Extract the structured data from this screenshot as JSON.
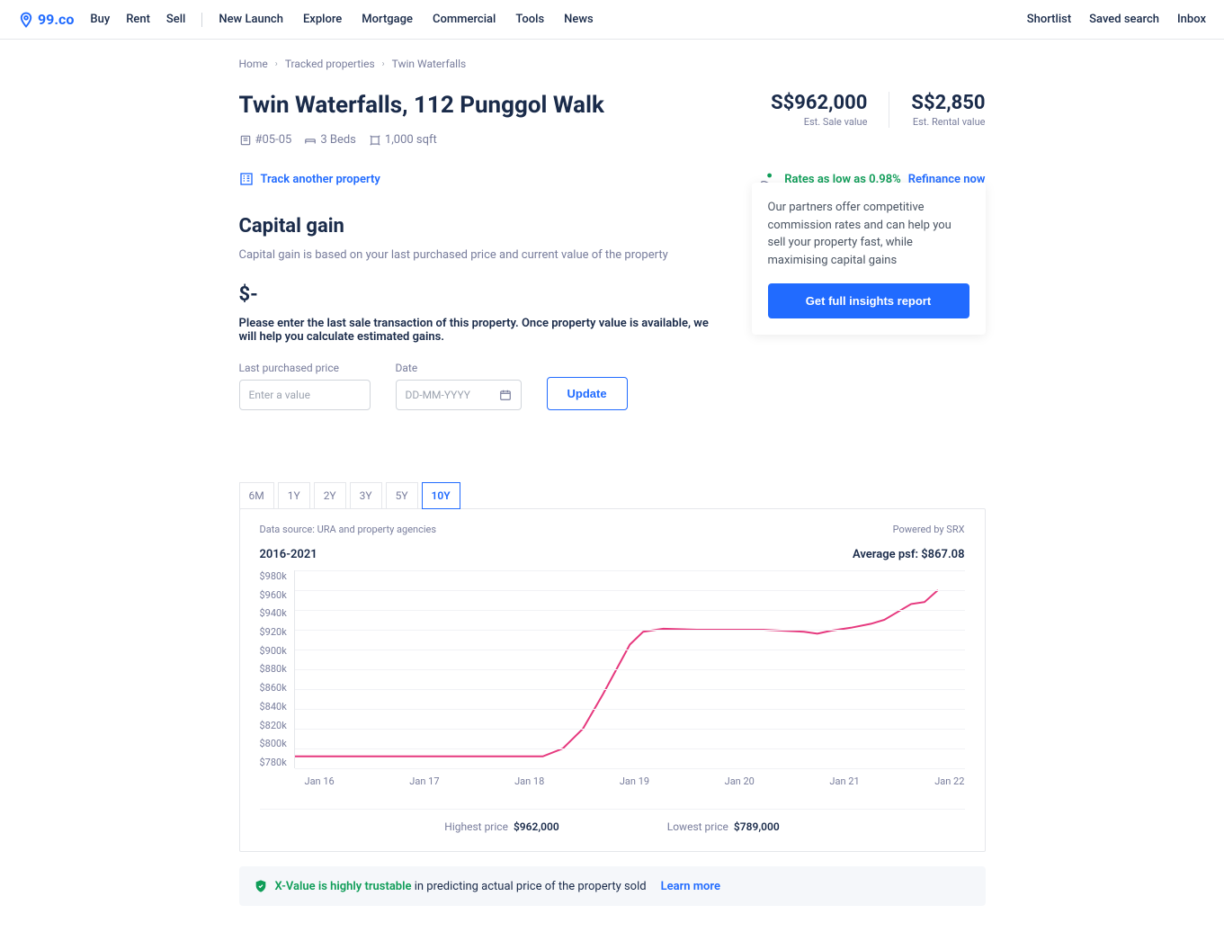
{
  "header": {
    "logo_text": "99.co",
    "nav_left": [
      "Buy",
      "Rent",
      "Sell"
    ],
    "nav_left2": [
      "New Launch",
      "Explore",
      "Mortgage",
      "Commercial",
      "Tools",
      "News"
    ],
    "nav_right": [
      "Shortlist",
      "Saved search",
      "Inbox"
    ]
  },
  "breadcrumb": [
    "Home",
    "Tracked properties",
    "Twin Waterfalls"
  ],
  "property": {
    "title": "Twin Waterfalls, 112 Punggol Walk",
    "unit": "#05-05",
    "beds": "3 Beds",
    "sqft": "1,000 sqft",
    "sale_value": "S$962,000",
    "sale_label": "Est. Sale value",
    "rental_value": "S$2,850",
    "rental_label": "Est. Rental value"
  },
  "track_link": "Track another property",
  "refinance": {
    "rate": "Rates as low as 0.98%",
    "link": "Refinance now"
  },
  "capital_gain": {
    "title": "Capital gain",
    "desc": "Capital gain is based on your last purchased price and current value of the property",
    "value": "$-",
    "note": "Please enter the last sale transaction of this property. Once property value is available, we will help you calculate estimated gains.",
    "price_label": "Last purchased price",
    "price_placeholder": "Enter a value",
    "date_label": "Date",
    "date_placeholder": "DD-MM-YYYY",
    "update_btn": "Update"
  },
  "side_card": {
    "text": "Our partners offer competitive commission rates and can help you sell your property fast, while maximising capital gains",
    "btn": "Get full insights report"
  },
  "range_tabs": [
    "6M",
    "1Y",
    "2Y",
    "3Y",
    "5Y",
    "10Y"
  ],
  "range_active": "10Y",
  "chart": {
    "type": "line",
    "data_source": "Data source: URA and property agencies",
    "powered_by": "Powered by SRX",
    "period": "2016-2021",
    "avg_psf": "Average psf: $867.08",
    "y_labels": [
      "$980k",
      "$960k",
      "$940k",
      "$920k",
      "$900k",
      "$880k",
      "$860k",
      "$840k",
      "$820k",
      "$800k",
      "$780k"
    ],
    "ylim": [
      780,
      980
    ],
    "x_labels": [
      "Jan 16",
      "Jan 17",
      "Jan 18",
      "Jan 19",
      "Jan 20",
      "Jan 21",
      "Jan 22"
    ],
    "line_color": "#e6397e",
    "grid_color": "#f1f2f5",
    "background_color": "#ffffff",
    "line_width": 2,
    "points": [
      [
        0,
        792
      ],
      [
        8,
        792
      ],
      [
        16,
        792
      ],
      [
        25,
        792
      ],
      [
        33,
        792
      ],
      [
        37,
        792
      ],
      [
        40,
        800
      ],
      [
        43,
        820
      ],
      [
        46,
        855
      ],
      [
        48,
        880
      ],
      [
        50,
        905
      ],
      [
        52,
        918
      ],
      [
        55,
        921
      ],
      [
        60,
        920
      ],
      [
        66,
        920
      ],
      [
        70,
        920
      ],
      [
        73,
        919
      ],
      [
        76,
        918
      ],
      [
        78,
        916
      ],
      [
        80,
        919
      ],
      [
        83,
        922
      ],
      [
        86,
        926
      ],
      [
        88,
        930
      ],
      [
        90,
        938
      ],
      [
        92,
        946
      ],
      [
        94,
        948
      ],
      [
        96,
        960
      ]
    ],
    "highest_label": "Highest price",
    "highest_value": "$962,000",
    "lowest_label": "Lowest price",
    "lowest_value": "$789,000"
  },
  "trust": {
    "strong": "X-Value is highly trustable",
    "rest": " in predicting actual price of the property sold",
    "learn": "Learn more"
  },
  "colors": {
    "primary": "#216bff",
    "success": "#0f9d58",
    "chart_line": "#e6397e",
    "text_dark": "#1a2b4a",
    "text_muted": "#787d9c"
  }
}
